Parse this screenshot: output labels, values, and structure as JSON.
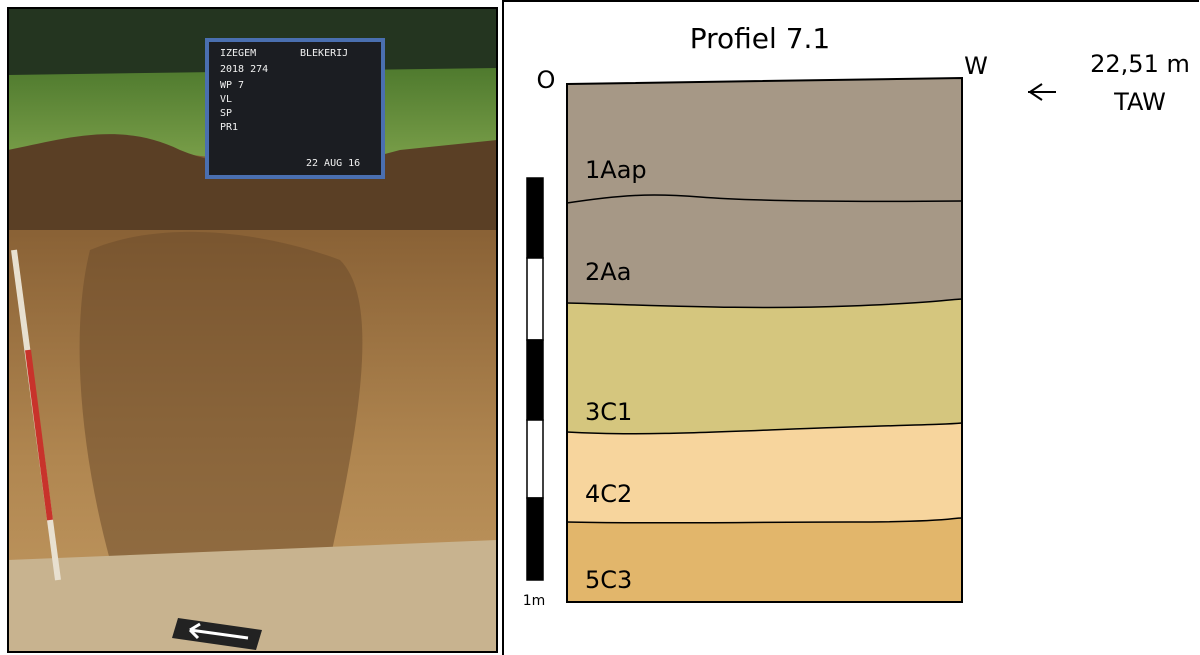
{
  "photo": {
    "board": [
      "IZEGEM",
      "BLEKERIJ",
      "2018 274",
      "WP 7",
      "VL",
      "SP",
      "PR1",
      "22 AUG 16"
    ]
  },
  "profile": {
    "title": "Profiel 7.1",
    "left": "O",
    "right": "W",
    "elevation": "22,51 m",
    "datum": "TAW",
    "layers": [
      "1Aap",
      "2Aa",
      "3C1",
      "4C2",
      "5C3"
    ],
    "scale": "1m"
  }
}
